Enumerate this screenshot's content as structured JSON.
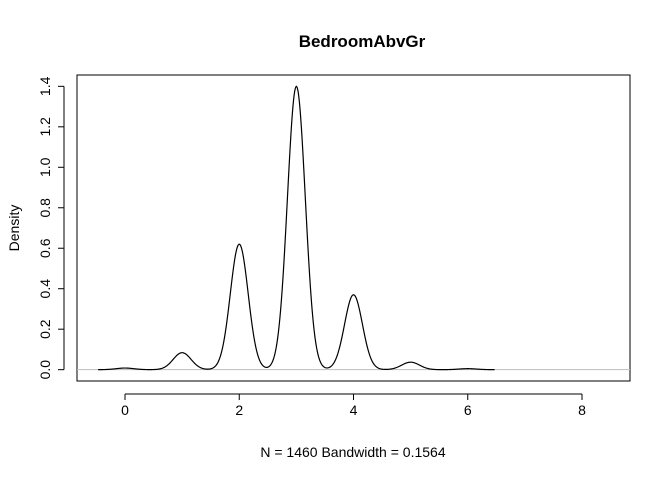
{
  "chart_data": {
    "type": "line",
    "title": "BedroomAbvGr",
    "xlabel": "N = 1460   Bandwidth = 0.1564",
    "ylabel": "Density",
    "xlim": [
      -0.84,
      8.84
    ],
    "ylim": [
      -0.056,
      1.456
    ],
    "x_ticks": [
      "0",
      "2",
      "4",
      "6",
      "8"
    ],
    "y_ticks": [
      "0.0",
      "0.2",
      "0.4",
      "0.6",
      "0.8",
      "1.0",
      "1.2",
      "1.4"
    ],
    "baseline_y": 0,
    "baseline_color": "#bebebe",
    "line_color": "#000000",
    "grid": false,
    "series": [
      {
        "kernel": "gaussian",
        "bandwidth": 0.1564,
        "x_range": [
          -0.47,
          6.47
        ],
        "peaks": [
          {
            "x": 0,
            "y": 0.008
          },
          {
            "x": 1,
            "y": 0.084
          },
          {
            "x": 2,
            "y": 0.62
          },
          {
            "x": 3,
            "y": 1.4
          },
          {
            "x": 4,
            "y": 0.37
          },
          {
            "x": 5,
            "y": 0.037
          },
          {
            "x": 6,
            "y": 0.005
          }
        ]
      }
    ]
  }
}
